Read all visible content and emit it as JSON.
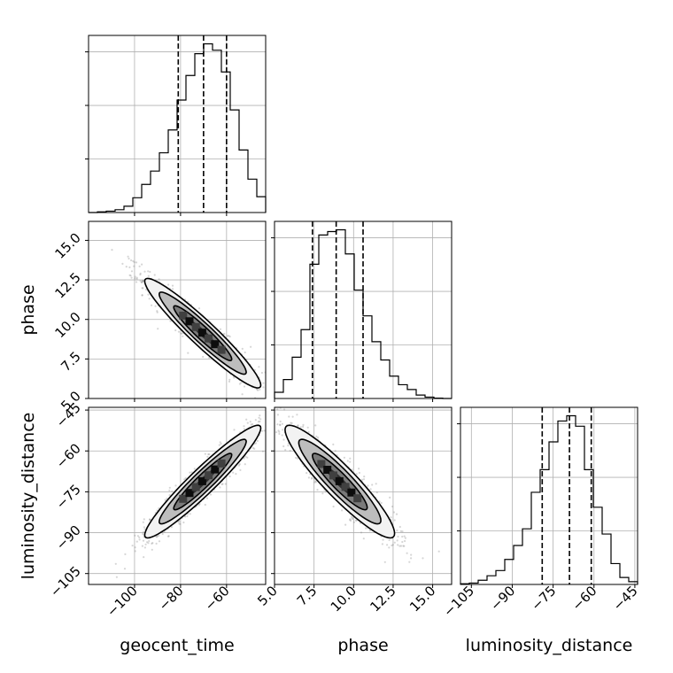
{
  "chart_data": {
    "type": "corner",
    "parameters": [
      "geocent_time",
      "phase",
      "luminosity_distance"
    ],
    "xlabels": {
      "geocent_time": "geocent_time",
      "phase": "phase",
      "luminosity_distance": "luminosity_distance"
    },
    "ylabels": {
      "phase": "phase",
      "luminosity_distance": "luminosity_distance"
    },
    "ranges": {
      "geocent_time": [
        -120,
        -43
      ],
      "phase": [
        5.0,
        16.2
      ],
      "luminosity_distance": [
        -109,
        -44
      ]
    },
    "ticks": {
      "geocent_time": [
        -100,
        -80,
        -60
      ],
      "phase": [
        5.0,
        7.5,
        10.0,
        12.5,
        15.0
      ],
      "luminosity_distance": [
        -105,
        -90,
        -75,
        -60,
        -45
      ]
    },
    "tick_labels": {
      "geocent_time": [
        "−100",
        "−80",
        "−60"
      ],
      "phase": [
        "5.0",
        "7.5",
        "10.0",
        "12.5",
        "15.0"
      ],
      "luminosity_distance": [
        "−105",
        "−90",
        "−75",
        "−60",
        "−45"
      ]
    },
    "quantiles": {
      "geocent_time": [
        -81,
        -70,
        -60
      ],
      "phase": [
        7.4,
        8.9,
        10.6
      ],
      "luminosity_distance": [
        -79,
        -69,
        -61
      ]
    },
    "histograms": {
      "geocent_time": {
        "bin_edges": [
          -120,
          -116.15,
          -112.3,
          -108.45,
          -104.6,
          -100.75,
          -96.9,
          -93.05,
          -89.2,
          -85.35,
          -81.5,
          -77.65,
          -73.8,
          -69.95,
          -66.1,
          -62.25,
          -58.4,
          -54.55,
          -50.7,
          -46.85,
          -43
        ],
        "counts": [
          0,
          2,
          4,
          8,
          18,
          42,
          80,
          118,
          170,
          235,
          320,
          390,
          452,
          480,
          462,
          400,
          292,
          178,
          95,
          45
        ]
      },
      "phase": {
        "bin_edges": [
          5.0,
          5.56,
          6.12,
          6.68,
          7.24,
          7.8,
          8.36,
          8.92,
          9.48,
          10.04,
          10.6,
          11.16,
          11.72,
          12.28,
          12.84,
          13.4,
          13.96,
          14.52,
          15.08,
          15.64,
          16.2
        ],
        "counts": [
          18,
          55,
          120,
          200,
          390,
          475,
          485,
          490,
          420,
          315,
          240,
          165,
          112,
          65,
          40,
          26,
          10,
          4,
          1,
          0
        ]
      },
      "luminosity_distance": {
        "bin_edges": [
          -109,
          -105.75,
          -102.5,
          -99.25,
          -96,
          -92.75,
          -89.5,
          -86.25,
          -83,
          -79.75,
          -76.5,
          -73.25,
          -70,
          -66.75,
          -63.5,
          -60.25,
          -57,
          -53.75,
          -50.5,
          -47.25,
          -44
        ],
        "counts": [
          2,
          4,
          12,
          25,
          40,
          72,
          112,
          160,
          265,
          330,
          410,
          470,
          485,
          455,
          330,
          222,
          145,
          60,
          20,
          8
        ]
      }
    },
    "correlations": {
      "geocent_time_vs_phase": -0.95,
      "geocent_time_vs_luminosity_distance": 0.95,
      "phase_vs_luminosity_distance": -0.92
    },
    "contour_levels": [
      0.118,
      0.393,
      0.675,
      0.864
    ],
    "grid": true,
    "quantile_line_style": "dashed"
  }
}
